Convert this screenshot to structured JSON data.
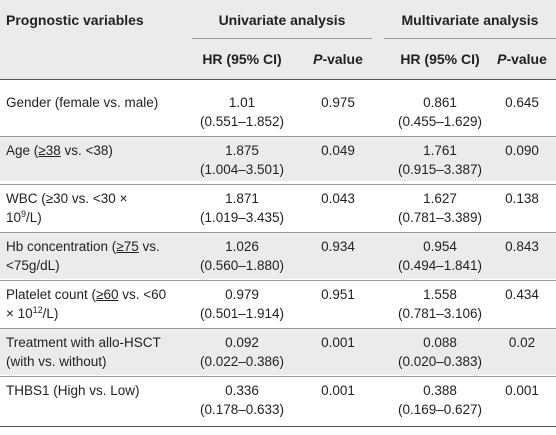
{
  "header": {
    "col1": "Prognostic variables",
    "group1": "Univariate analysis",
    "group2": "Multivariate analysis",
    "hr1": "HR (95% CI)",
    "p1_italic": "P",
    "p1_rest": "-value",
    "hr2": "HR (95% CI)",
    "p2_italic": "P",
    "p2_rest": "-value"
  },
  "rows": [
    {
      "label1": "Gender (female vs. male)",
      "label2": "",
      "uhr": "1.01",
      "uci": "(0.551–1.852)",
      "up": "0.975",
      "mhr": "0.861",
      "mci": "(0.455–1.629)",
      "mp": "0.645"
    },
    {
      "label1_a": "Age (",
      "label1_b": "≥38",
      "label1_c": " vs. <38)",
      "label2": "",
      "uhr": "1.875",
      "uci": "(1.004–3.501)",
      "up": "0.049",
      "mhr": "1.761",
      "mci": "(0.915–3.387)",
      "mp": "0.090"
    },
    {
      "label1": "WBC (≥30 vs. <30 ×",
      "label2_a": "10",
      "label2_sup": "9",
      "label2_b": "/L)",
      "uhr": "1.871",
      "uci": "(1.019–3.435)",
      "up": "0.043",
      "mhr": "1.627",
      "mci": "(0.781–3.389)",
      "mp": "0.138"
    },
    {
      "label1_a": "Hb concentration (",
      "label1_b": "≥75",
      "label1_c": " vs.",
      "label2": "<75g/dL)",
      "uhr": "1.026",
      "uci": "(0.560–1.880)",
      "up": "0.934",
      "mhr": "0.954",
      "mci": "(0.494–1.841)",
      "mp": "0.843"
    },
    {
      "label1_a": "Platelet count (",
      "label1_b": "≥60",
      "label1_c": " vs. <60",
      "label2_a": "× 10",
      "label2_sup": "12",
      "label2_b": "/L)",
      "uhr": "0.979",
      "uci": "(0.501–1.914)",
      "up": "0.951",
      "mhr": "1.558",
      "mci": "(0.781–3.106)",
      "mp": "0.434"
    },
    {
      "label1": "Treatment with allo-HSCT",
      "label2": "(with vs. without)",
      "uhr": "0.092",
      "uci": "(0.022–0.386)",
      "up": "0.001",
      "mhr": "0.088",
      "mci": "(0.020–0.383)",
      "mp": "0.02"
    },
    {
      "label1": "THBS1 (High vs. Low)",
      "label2": "",
      "uhr": "0.336",
      "uci": "(0.178–0.633)",
      "up": "0.001",
      "mhr": "0.388",
      "mci": "(0.169–0.627)",
      "mp": "0.001"
    }
  ]
}
